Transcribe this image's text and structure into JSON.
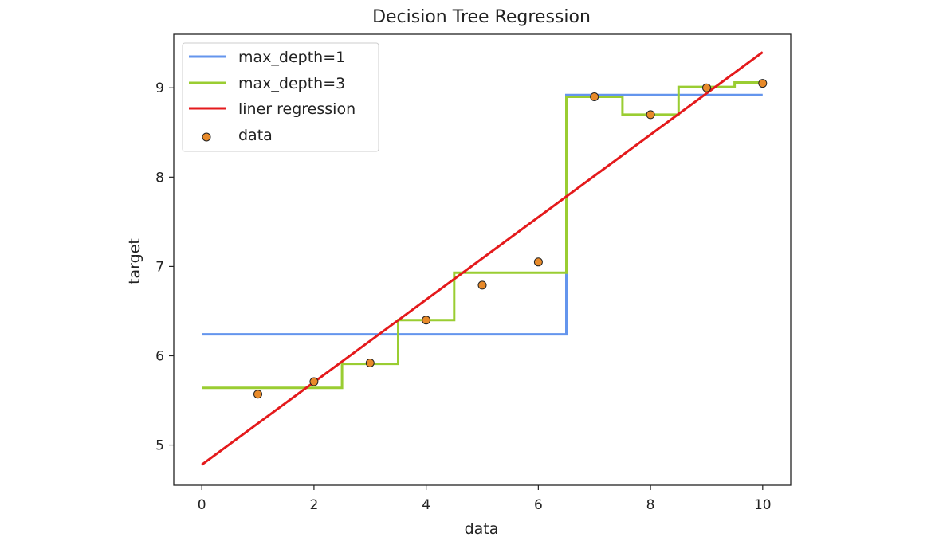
{
  "chart_data": {
    "type": "line",
    "title": "Decision Tree Regression",
    "xlabel": "data",
    "ylabel": "target",
    "xlim": [
      -0.5,
      10.5
    ],
    "ylim": [
      4.55,
      9.6
    ],
    "xticks": [
      "0",
      "2",
      "4",
      "6",
      "8",
      "10"
    ],
    "yticks": [
      "5",
      "6",
      "7",
      "8",
      "9"
    ],
    "legend_position": "upper-left",
    "series": [
      {
        "name": "max_depth=1",
        "color": "#6495ED",
        "kind": "step",
        "x": [
          0,
          6.5,
          6.5,
          10
        ],
        "y": [
          6.24,
          6.24,
          8.92,
          8.92
        ]
      },
      {
        "name": "max_depth=3",
        "color": "#9ACD32",
        "kind": "step",
        "x": [
          0,
          2.5,
          2.5,
          3.5,
          3.5,
          4.5,
          4.5,
          6.5,
          6.5,
          7.5,
          7.5,
          8.5,
          8.5,
          9.5,
          9.5,
          10
        ],
        "y": [
          5.64,
          5.64,
          5.91,
          5.91,
          6.4,
          6.4,
          6.93,
          6.93,
          8.9,
          8.9,
          8.7,
          8.7,
          9.01,
          9.01,
          9.06,
          9.06
        ]
      },
      {
        "name": "liner regression",
        "color": "#E41A1C",
        "kind": "line",
        "x": [
          0,
          10
        ],
        "y": [
          4.78,
          9.4
        ]
      }
    ],
    "scatter": {
      "name": "data",
      "color": "#E88A2A",
      "edge_color": "#222222",
      "x": [
        1,
        2,
        3,
        4,
        5,
        6,
        7,
        8,
        9,
        10
      ],
      "y": [
        5.57,
        5.71,
        5.92,
        6.4,
        6.79,
        7.05,
        8.9,
        8.7,
        9.0,
        9.05
      ]
    }
  }
}
